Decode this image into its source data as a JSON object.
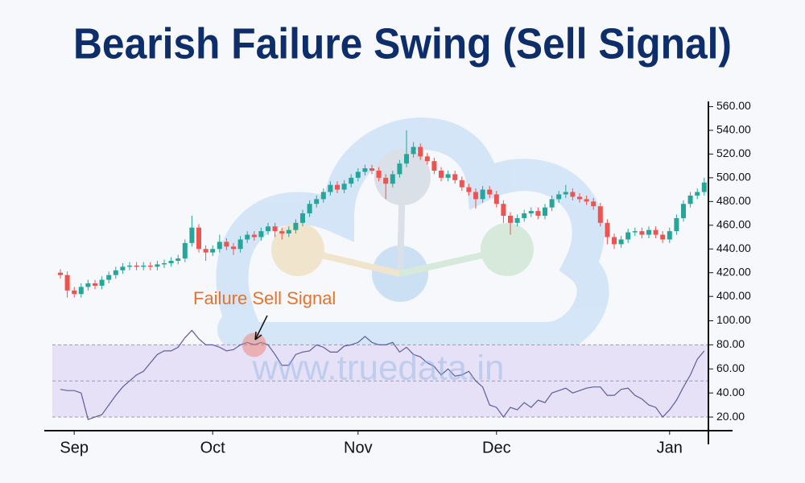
{
  "chart_data": {
    "type": "candlestick",
    "title": "Bearish Failure Swing (Sell Signal)",
    "watermark": "www.truedata.in",
    "annotation": "Failure Sell Signal",
    "categories": [
      null,
      null,
      "Sep",
      null,
      null,
      null,
      null,
      null,
      null,
      null,
      null,
      null,
      null,
      null,
      null,
      null,
      null,
      null,
      null,
      null,
      null,
      null,
      "Oct",
      null,
      null,
      null,
      null,
      null,
      null,
      null,
      null,
      null,
      null,
      null,
      null,
      null,
      null,
      null,
      null,
      null,
      null,
      null,
      null,
      "Nov",
      null,
      null,
      null,
      null,
      null,
      null,
      null,
      null,
      null,
      null,
      null,
      null,
      null,
      null,
      null,
      null,
      null,
      null,
      null,
      "Dec",
      null,
      null,
      null,
      null,
      null,
      null,
      null,
      null,
      null,
      null,
      null,
      null,
      null,
      null,
      null,
      null,
      null,
      null,
      null,
      null,
      null,
      null,
      null,
      null,
      "Jan",
      null,
      null,
      null,
      null,
      null
    ],
    "open": [
      420,
      418,
      405,
      402,
      408,
      411,
      409,
      414,
      418,
      422,
      425,
      426,
      425,
      426,
      425,
      427,
      428,
      430,
      432,
      445,
      458,
      440,
      437,
      440,
      446,
      442,
      440,
      448,
      452,
      450,
      455,
      459,
      455,
      453,
      456,
      462,
      470,
      478,
      482,
      488,
      494,
      490,
      495,
      500,
      505,
      508,
      506,
      500,
      495,
      503,
      512,
      520,
      526,
      518,
      514,
      506,
      500,
      503,
      498,
      492,
      488,
      482,
      490,
      486,
      478,
      468,
      462,
      466,
      470,
      472,
      468,
      475,
      482,
      486,
      488,
      484,
      482,
      480,
      476,
      462,
      450,
      444,
      448,
      454,
      455,
      452,
      456,
      452,
      448,
      455,
      466,
      478,
      485,
      488
    ],
    "high": [
      423,
      421,
      408,
      411,
      414,
      414,
      417,
      421,
      425,
      428,
      429,
      429,
      429,
      429,
      430,
      431,
      433,
      435,
      448,
      468,
      461,
      443,
      443,
      452,
      449,
      445,
      451,
      455,
      455,
      458,
      462,
      462,
      458,
      459,
      465,
      473,
      481,
      485,
      491,
      497,
      497,
      498,
      503,
      508,
      511,
      511,
      509,
      503,
      506,
      515,
      540,
      530,
      529,
      521,
      517,
      509,
      506,
      506,
      501,
      495,
      491,
      493,
      493,
      489,
      481,
      471,
      469,
      473,
      475,
      475,
      478,
      485,
      489,
      494,
      491,
      487,
      485,
      483,
      479,
      465,
      453,
      451,
      457,
      458,
      458,
      459,
      459,
      455,
      458,
      469,
      481,
      488,
      491,
      500
    ],
    "low": [
      415,
      399,
      399,
      399,
      405,
      406,
      406,
      411,
      415,
      419,
      422,
      422,
      422,
      422,
      422,
      424,
      425,
      427,
      429,
      442,
      437,
      430,
      434,
      437,
      439,
      435,
      437,
      445,
      447,
      447,
      452,
      450,
      448,
      450,
      453,
      459,
      467,
      475,
      479,
      485,
      487,
      487,
      492,
      497,
      502,
      503,
      497,
      482,
      492,
      500,
      509,
      517,
      515,
      511,
      503,
      497,
      497,
      495,
      489,
      485,
      474,
      479,
      483,
      475,
      462,
      452,
      459,
      463,
      467,
      465,
      465,
      472,
      479,
      483,
      481,
      479,
      477,
      473,
      459,
      444,
      440,
      441,
      445,
      451,
      449,
      449,
      449,
      445,
      445,
      452,
      463,
      475,
      482,
      485
    ],
    "close": [
      418,
      405,
      402,
      408,
      411,
      409,
      414,
      418,
      422,
      425,
      426,
      425,
      426,
      425,
      427,
      428,
      430,
      432,
      445,
      458,
      440,
      437,
      440,
      446,
      442,
      440,
      448,
      452,
      450,
      455,
      459,
      455,
      453,
      456,
      462,
      470,
      478,
      482,
      488,
      494,
      490,
      495,
      500,
      505,
      508,
      506,
      500,
      495,
      503,
      512,
      520,
      526,
      518,
      514,
      506,
      500,
      503,
      498,
      492,
      488,
      482,
      490,
      486,
      478,
      468,
      462,
      466,
      470,
      472,
      468,
      475,
      482,
      486,
      488,
      484,
      482,
      480,
      476,
      462,
      450,
      444,
      448,
      454,
      455,
      452,
      456,
      452,
      448,
      455,
      466,
      478,
      485,
      488,
      496
    ],
    "up_color": "#26a69a",
    "down_color": "#ef5350",
    "ylim": [
      392,
      563
    ],
    "yticks": [
      {
        "value": 400,
        "label": "400.00"
      },
      {
        "value": 420,
        "label": "420.00"
      },
      {
        "value": 440,
        "label": "440.00"
      },
      {
        "value": 460,
        "label": "460.00"
      },
      {
        "value": 480,
        "label": "480.00"
      },
      {
        "value": 500,
        "label": "500.00"
      },
      {
        "value": 520,
        "label": "520.00"
      },
      {
        "value": 540,
        "label": "540.00"
      },
      {
        "value": 560,
        "label": "560.00"
      }
    ],
    "rsi": {
      "values": [
        43,
        42,
        42,
        40,
        18,
        20,
        22,
        30,
        38,
        45,
        50,
        55,
        58,
        65,
        72,
        75,
        75,
        78,
        86,
        92,
        85,
        80,
        80,
        78,
        75,
        76,
        80,
        82,
        80,
        82,
        80,
        72,
        63,
        63,
        72,
        74,
        75,
        80,
        78,
        74,
        74,
        79,
        80,
        82,
        87,
        82,
        80,
        80,
        82,
        74,
        78,
        72,
        70,
        65,
        62,
        55,
        60,
        54,
        55,
        58,
        50,
        45,
        30,
        28,
        20,
        28,
        26,
        32,
        28,
        34,
        32,
        40,
        42,
        44,
        40,
        42,
        44,
        45,
        45,
        38,
        38,
        43,
        44,
        38,
        35,
        30,
        28,
        20,
        26,
        34,
        45,
        55,
        68,
        75
      ],
      "color": "#5a5f9e",
      "band_color": "#e6e1f6",
      "levels": [
        20,
        50,
        80
      ],
      "ylim": [
        10,
        103
      ],
      "yticks": [
        {
          "value": 20,
          "label": "20.00"
        },
        {
          "value": 40,
          "label": "40.00"
        },
        {
          "value": 60,
          "label": "60.00"
        },
        {
          "value": 80,
          "label": "80.00"
        },
        {
          "value": 100,
          "label": "100.00"
        }
      ]
    }
  }
}
